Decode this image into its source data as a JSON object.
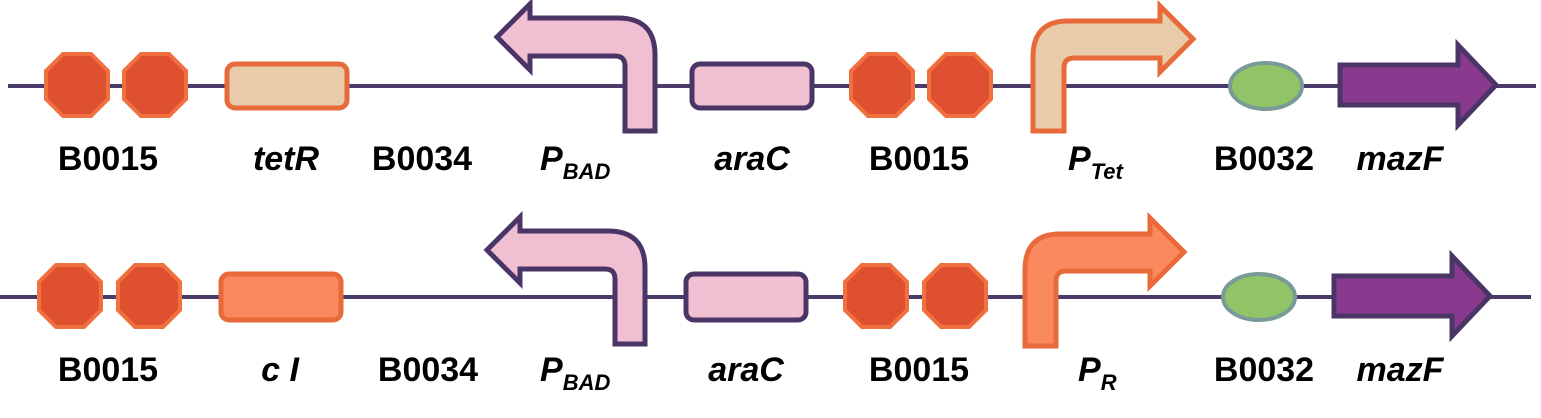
{
  "constructs": [
    {
      "parts": {
        "terminator1": "B0015",
        "repressor": "tetR",
        "rbs1": "B0034",
        "pbad_main": "P",
        "pbad_sub": "BAD",
        "arac": "araC",
        "terminator2": "B0015",
        "prom_main": "P",
        "prom_sub": "Tet",
        "rbs2": "B0032",
        "gene": "mazF"
      },
      "colors": {
        "repressor_fill": "#E8CBA8",
        "promoter_fill": "#E8CBA8"
      }
    },
    {
      "parts": {
        "terminator1": "B0015",
        "repressor": "c I",
        "rbs1": "B0034",
        "pbad_main": "P",
        "pbad_sub": "BAD",
        "arac": "araC",
        "terminator2": "B0015",
        "prom_main": "P",
        "prom_sub": "R",
        "rbs2": "B0032",
        "gene": "mazF"
      },
      "colors": {
        "repressor_fill": "#FA8A5E",
        "promoter_fill": "#FA8A5E"
      }
    }
  ],
  "colors": {
    "backbone": "#4A3A6A",
    "terminator": "#DE5030",
    "terminator_border": "#F07040",
    "pbad_fill": "#F0BFD2",
    "outline_dark": "#4A3566",
    "promoter_border": "#E8693A",
    "rbs_fill": "#90C466",
    "rbs_border": "#7A9A9A",
    "gene_fill": "#8A3A8E"
  }
}
